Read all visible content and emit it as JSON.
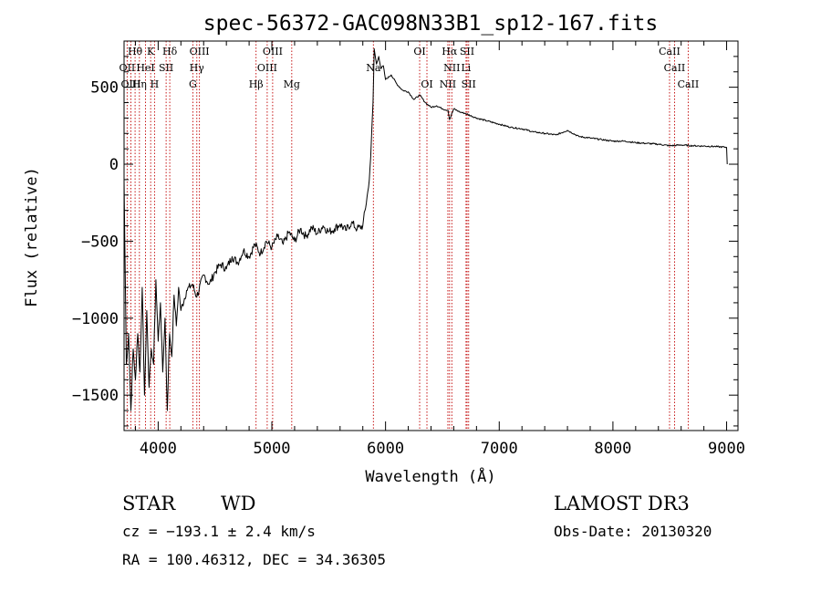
{
  "chart_data": {
    "type": "line",
    "title": "spec-56372-GAC098N33B1_sp12-167.fits",
    "xlabel": "Wavelength (Å)",
    "ylabel": "Flux (relative)",
    "xlim": [
      3700,
      9100
    ],
    "ylim": [
      -1730,
      800
    ],
    "xticks": [
      4000,
      5000,
      6000,
      7000,
      8000,
      9000
    ],
    "xtick_labels": [
      "4000",
      "5000",
      "6000",
      "7000",
      "8000",
      "9000"
    ],
    "yticks": [
      -1500,
      -1000,
      -500,
      0,
      500
    ],
    "ytick_labels": [
      "−1500",
      "−1000",
      "−500",
      "0",
      "500"
    ],
    "series": [
      {
        "name": "spectrum",
        "x": [
          3700,
          3720,
          3740,
          3760,
          3780,
          3800,
          3820,
          3840,
          3860,
          3880,
          3900,
          3920,
          3940,
          3960,
          3980,
          4000,
          4020,
          4040,
          4060,
          4080,
          4100,
          4120,
          4140,
          4160,
          4180,
          4200,
          4250,
          4300,
          4340,
          4400,
          4450,
          4500,
          4550,
          4600,
          4650,
          4700,
          4750,
          4800,
          4850,
          4900,
          4950,
          5000,
          5050,
          5100,
          5150,
          5200,
          5250,
          5300,
          5350,
          5400,
          5450,
          5500,
          5550,
          5600,
          5650,
          5700,
          5750,
          5800,
          5850,
          5870,
          5890,
          5900,
          5920,
          5940,
          5960,
          5980,
          6000,
          6050,
          6100,
          6150,
          6200,
          6250,
          6300,
          6350,
          6400,
          6450,
          6500,
          6550,
          6563,
          6600,
          6650,
          6700,
          6800,
          6900,
          7000,
          7100,
          7200,
          7300,
          7400,
          7500,
          7600,
          7700,
          7800,
          7900,
          8000,
          8100,
          8200,
          8300,
          8400,
          8500,
          8600,
          8700,
          8800,
          8900,
          9000,
          9005
        ],
        "values": [
          -100,
          -1300,
          -1100,
          -1600,
          -1200,
          -1400,
          -1100,
          -1350,
          -800,
          -1500,
          -950,
          -1450,
          -1200,
          -1300,
          -750,
          -1150,
          -900,
          -1350,
          -1000,
          -1600,
          -1100,
          -1250,
          -850,
          -1050,
          -800,
          -950,
          -820,
          -780,
          -860,
          -720,
          -780,
          -700,
          -650,
          -680,
          -600,
          -640,
          -560,
          -600,
          -520,
          -580,
          -500,
          -540,
          -470,
          -520,
          -440,
          -500,
          -420,
          -470,
          -410,
          -450,
          -400,
          -440,
          -420,
          -390,
          -430,
          -380,
          -420,
          -400,
          -150,
          50,
          400,
          750,
          650,
          700,
          620,
          640,
          550,
          580,
          520,
          480,
          470,
          420,
          450,
          400,
          370,
          380,
          360,
          350,
          290,
          360,
          340,
          330,
          300,
          280,
          260,
          240,
          230,
          210,
          200,
          190,
          220,
          180,
          170,
          160,
          150,
          150,
          140,
          135,
          130,
          120,
          125,
          120,
          118,
          115,
          110,
          0
        ]
      }
    ],
    "line_markers": [
      {
        "label": "Hθ",
        "x": 3797,
        "row": 0
      },
      {
        "label": "K",
        "x": 3934,
        "row": 0
      },
      {
        "label": "Hδ",
        "x": 4102,
        "row": 0
      },
      {
        "label": "OIII",
        "x": 4363,
        "row": 0
      },
      {
        "label": "OIII",
        "x": 5007,
        "row": 0
      },
      {
        "label": "OI",
        "x": 6300,
        "row": 0
      },
      {
        "label": "Hα",
        "x": 6563,
        "row": 0
      },
      {
        "label": "SII",
        "x": 6717,
        "row": 0
      },
      {
        "label": "CaII",
        "x": 8498,
        "row": 0
      },
      {
        "label": "OII",
        "x": 3727,
        "row": 1
      },
      {
        "label": "HeI",
        "x": 3889,
        "row": 1
      },
      {
        "label": "SII",
        "x": 4070,
        "row": 1
      },
      {
        "label": "Hγ",
        "x": 4340,
        "row": 1
      },
      {
        "label": "OIII",
        "x": 4959,
        "row": 1
      },
      {
        "label": "Na",
        "x": 5893,
        "row": 1
      },
      {
        "label": "NII",
        "x": 6583,
        "row": 1
      },
      {
        "label": "Li",
        "x": 6708,
        "row": 1
      },
      {
        "label": "CaII",
        "x": 8542,
        "row": 1
      },
      {
        "label": "OIII",
        "x": 3760,
        "row": 2
      },
      {
        "label": "Hη",
        "x": 3835,
        "row": 2
      },
      {
        "label": "H",
        "x": 3968,
        "row": 2
      },
      {
        "label": "G",
        "x": 4305,
        "row": 2
      },
      {
        "label": "Hβ",
        "x": 4861,
        "row": 2
      },
      {
        "label": "Mg",
        "x": 5175,
        "row": 2
      },
      {
        "label": "OI",
        "x": 6364,
        "row": 2
      },
      {
        "label": "NII",
        "x": 6548,
        "row": 2
      },
      {
        "label": "SII",
        "x": 6731,
        "row": 2
      },
      {
        "label": "CaII",
        "x": 8662,
        "row": 2
      }
    ]
  },
  "info": {
    "class_label": "STAR",
    "subclass_label": "WD",
    "redshift_text": "cz = −193.1 ± 2.4 km/s",
    "coords_text": "RA = 100.46312, DEC =  34.36305",
    "survey_label": "LAMOST DR3",
    "obs_date_text": "Obs-Date: 20130320"
  }
}
